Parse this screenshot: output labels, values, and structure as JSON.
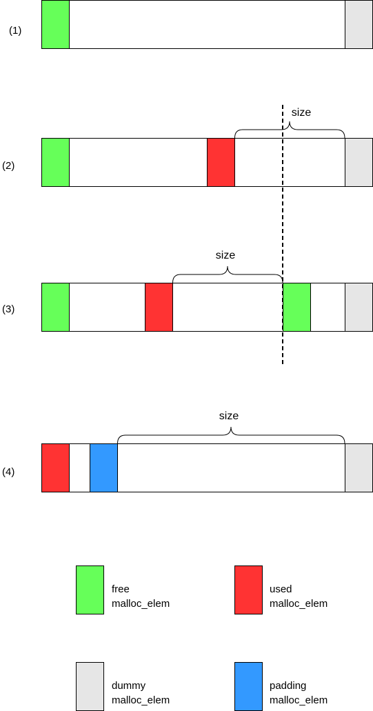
{
  "colors": {
    "free": "#66ff59",
    "used": "#ff3333",
    "dummy": "#e6e6e6",
    "padding": "#3399ff",
    "block": "#ffffff",
    "stroke": "#000000"
  },
  "rows": [
    {
      "label": "(1)",
      "segments": [
        {
          "kind": "free"
        },
        {
          "kind": "block"
        },
        {
          "kind": "dummy"
        }
      ]
    },
    {
      "label": "(2)",
      "size_label": "size",
      "segments": [
        {
          "kind": "free"
        },
        {
          "kind": "block"
        },
        {
          "kind": "used"
        },
        {
          "kind": "block"
        },
        {
          "kind": "dummy"
        }
      ]
    },
    {
      "label": "(3)",
      "size_label": "size",
      "segments": [
        {
          "kind": "free"
        },
        {
          "kind": "block"
        },
        {
          "kind": "used"
        },
        {
          "kind": "block"
        },
        {
          "kind": "free"
        },
        {
          "kind": "block"
        },
        {
          "kind": "dummy"
        }
      ]
    },
    {
      "label": "(4)",
      "size_label": "size",
      "segments": [
        {
          "kind": "used"
        },
        {
          "kind": "block"
        },
        {
          "kind": "padding"
        },
        {
          "kind": "block"
        },
        {
          "kind": "dummy"
        }
      ]
    }
  ],
  "legend": [
    {
      "kind": "free",
      "line1": "free",
      "line2": "malloc_elem"
    },
    {
      "kind": "used",
      "line1": "used",
      "line2": "malloc_elem"
    },
    {
      "kind": "dummy",
      "line1": "dummy",
      "line2": "malloc_elem"
    },
    {
      "kind": "padding",
      "line1": "padding",
      "line2": "malloc_elem"
    }
  ]
}
